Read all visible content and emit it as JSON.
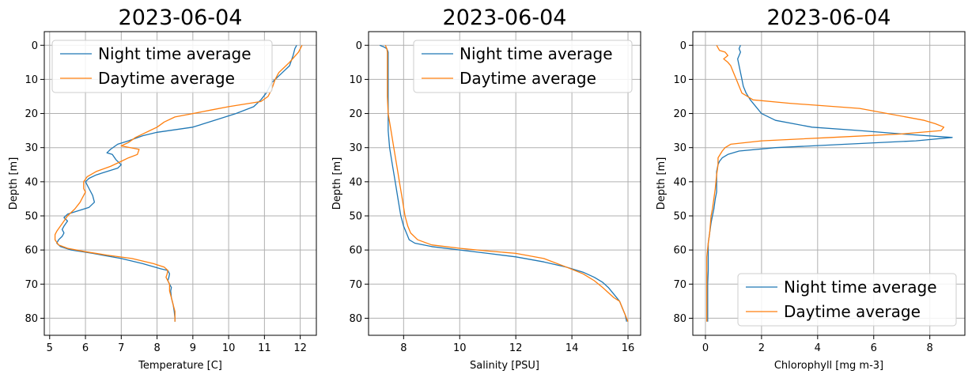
{
  "chart_data": [
    {
      "type": "line",
      "title": "2023-06-04",
      "xlabel": "Temperature [C]",
      "ylabel": "Depth [m]",
      "xlim": [
        4.85,
        12.45
      ],
      "ylim": [
        85,
        -4
      ],
      "xticks": [
        5,
        6,
        7,
        8,
        9,
        10,
        11,
        12
      ],
      "yticks": [
        0,
        10,
        20,
        30,
        40,
        50,
        60,
        70,
        80
      ],
      "grid": true,
      "legend_position": "top-left",
      "series": [
        {
          "name": "Night time average",
          "color": "#1f77b4",
          "points": [
            [
              11.9,
              0
            ],
            [
              11.85,
              1
            ],
            [
              11.8,
              3
            ],
            [
              11.7,
              6
            ],
            [
              11.5,
              8
            ],
            [
              11.2,
              11
            ],
            [
              11.05,
              14
            ],
            [
              10.9,
              16
            ],
            [
              10.7,
              18
            ],
            [
              10.2,
              20
            ],
            [
              9.6,
              22
            ],
            [
              9.0,
              24
            ],
            [
              8.0,
              25.5
            ],
            [
              7.6,
              26.5
            ],
            [
              7.2,
              28
            ],
            [
              6.9,
              29
            ],
            [
              6.7,
              30.5
            ],
            [
              6.6,
              31.5
            ],
            [
              6.75,
              32
            ],
            [
              6.85,
              33.5
            ],
            [
              7.0,
              35
            ],
            [
              6.9,
              36
            ],
            [
              6.6,
              37
            ],
            [
              6.3,
              38
            ],
            [
              6.1,
              39
            ],
            [
              6.0,
              40
            ],
            [
              6.1,
              42
            ],
            [
              6.2,
              44
            ],
            [
              6.25,
              46
            ],
            [
              6.1,
              47.5
            ],
            [
              5.8,
              48.5
            ],
            [
              5.5,
              49.5
            ],
            [
              5.4,
              50.5
            ],
            [
              5.5,
              51.5
            ],
            [
              5.4,
              53
            ],
            [
              5.35,
              54
            ],
            [
              5.4,
              55
            ],
            [
              5.35,
              56
            ],
            [
              5.25,
              57
            ],
            [
              5.2,
              58
            ],
            [
              5.3,
              59
            ],
            [
              5.6,
              60
            ],
            [
              6.2,
              61
            ],
            [
              7.0,
              62.5
            ],
            [
              7.6,
              64
            ],
            [
              8.1,
              65.5
            ],
            [
              8.3,
              66
            ],
            [
              8.35,
              67
            ],
            [
              8.33,
              68
            ],
            [
              8.3,
              69
            ],
            [
              8.35,
              70
            ],
            [
              8.4,
              71
            ],
            [
              8.38,
              72
            ],
            [
              8.4,
              74
            ],
            [
              8.45,
              76
            ],
            [
              8.48,
              78
            ],
            [
              8.5,
              80
            ],
            [
              8.5,
              81
            ]
          ]
        },
        {
          "name": "Daytime average",
          "color": "#ff7f0e",
          "points": [
            [
              12.05,
              0
            ],
            [
              11.95,
              2
            ],
            [
              11.7,
              5
            ],
            [
              11.5,
              7
            ],
            [
              11.4,
              8
            ],
            [
              11.3,
              10
            ],
            [
              11.2,
              13
            ],
            [
              11.1,
              15
            ],
            [
              10.9,
              16.5
            ],
            [
              10.0,
              18
            ],
            [
              9.5,
              19
            ],
            [
              9.0,
              20
            ],
            [
              8.5,
              21
            ],
            [
              8.2,
              22.5
            ],
            [
              8.0,
              24
            ],
            [
              7.8,
              25
            ],
            [
              7.6,
              26
            ],
            [
              7.4,
              27
            ],
            [
              7.2,
              28.5
            ],
            [
              7.0,
              29.5
            ],
            [
              7.5,
              30.5
            ],
            [
              7.45,
              32
            ],
            [
              7.2,
              33
            ],
            [
              7.0,
              34
            ],
            [
              6.7,
              35.5
            ],
            [
              6.3,
              37
            ],
            [
              6.05,
              38.5
            ],
            [
              5.95,
              40
            ],
            [
              5.95,
              42
            ],
            [
              6.0,
              43
            ],
            [
              5.95,
              44
            ],
            [
              5.9,
              45
            ],
            [
              5.85,
              46
            ],
            [
              5.7,
              48
            ],
            [
              5.5,
              50
            ],
            [
              5.4,
              51.5
            ],
            [
              5.3,
              53
            ],
            [
              5.2,
              54.5
            ],
            [
              5.15,
              55.5
            ],
            [
              5.15,
              57
            ],
            [
              5.25,
              58.5
            ],
            [
              5.5,
              59.5
            ],
            [
              6.0,
              60.5
            ],
            [
              6.6,
              61.5
            ],
            [
              7.3,
              62.5
            ],
            [
              7.9,
              64
            ],
            [
              8.2,
              65
            ],
            [
              8.3,
              66
            ],
            [
              8.28,
              67
            ],
            [
              8.25,
              68
            ],
            [
              8.3,
              69
            ],
            [
              8.35,
              70
            ],
            [
              8.35,
              72
            ],
            [
              8.4,
              74
            ],
            [
              8.45,
              76
            ],
            [
              8.5,
              78
            ],
            [
              8.5,
              81
            ]
          ]
        }
      ]
    },
    {
      "type": "line",
      "title": "2023-06-04",
      "xlabel": "Salinity [PSU]",
      "ylabel": "Depth [m]",
      "xlim": [
        6.75,
        16.45
      ],
      "ylim": [
        85,
        -4
      ],
      "xticks": [
        8,
        10,
        12,
        14,
        16
      ],
      "yticks": [
        0,
        10,
        20,
        30,
        40,
        50,
        60,
        70,
        80
      ],
      "grid": true,
      "legend_position": "top-right",
      "series": [
        {
          "name": "Night time average",
          "color": "#1f77b4",
          "points": [
            [
              7.15,
              0
            ],
            [
              7.3,
              0.5
            ],
            [
              7.4,
              1
            ],
            [
              7.45,
              2
            ],
            [
              7.45,
              5
            ],
            [
              7.45,
              10
            ],
            [
              7.45,
              15
            ],
            [
              7.45,
              20
            ],
            [
              7.45,
              25
            ],
            [
              7.5,
              30
            ],
            [
              7.6,
              35
            ],
            [
              7.7,
              40
            ],
            [
              7.8,
              45
            ],
            [
              7.9,
              50
            ],
            [
              8.0,
              53
            ],
            [
              8.1,
              55
            ],
            [
              8.2,
              57
            ],
            [
              8.4,
              58
            ],
            [
              9.0,
              59
            ],
            [
              10.0,
              60
            ],
            [
              11.0,
              61
            ],
            [
              12.0,
              62
            ],
            [
              13.0,
              63.5
            ],
            [
              13.8,
              65
            ],
            [
              14.4,
              66.5
            ],
            [
              14.8,
              68
            ],
            [
              15.1,
              69.5
            ],
            [
              15.3,
              71
            ],
            [
              15.5,
              73
            ],
            [
              15.7,
              75
            ],
            [
              15.8,
              77
            ],
            [
              15.9,
              79
            ],
            [
              15.95,
              81
            ]
          ]
        },
        {
          "name": "Daytime average",
          "color": "#ff7f0e",
          "points": [
            [
              7.35,
              0
            ],
            [
              7.4,
              1
            ],
            [
              7.42,
              2
            ],
            [
              7.42,
              5
            ],
            [
              7.42,
              10
            ],
            [
              7.42,
              15
            ],
            [
              7.45,
              20
            ],
            [
              7.55,
              25
            ],
            [
              7.65,
              30
            ],
            [
              7.75,
              35
            ],
            [
              7.85,
              40
            ],
            [
              7.95,
              45
            ],
            [
              8.05,
              50
            ],
            [
              8.15,
              53
            ],
            [
              8.25,
              55
            ],
            [
              8.5,
              57
            ],
            [
              9.0,
              58.5
            ],
            [
              10.0,
              59.5
            ],
            [
              11.0,
              60.3
            ],
            [
              12.0,
              61
            ],
            [
              13.0,
              62.5
            ],
            [
              13.8,
              65
            ],
            [
              14.4,
              67
            ],
            [
              14.8,
              69
            ],
            [
              15.1,
              71
            ],
            [
              15.3,
              72.5
            ],
            [
              15.5,
              74
            ],
            [
              15.7,
              75
            ],
            [
              15.8,
              77
            ],
            [
              15.9,
              79
            ],
            [
              16.0,
              81
            ]
          ]
        }
      ]
    },
    {
      "type": "line",
      "title": "2023-06-04",
      "xlabel": "Chlorophyll [mg m-3]",
      "ylabel": "Depth [m]",
      "xlim": [
        -0.45,
        9.25
      ],
      "ylim": [
        85,
        -4
      ],
      "xticks": [
        0,
        2,
        4,
        6,
        8
      ],
      "yticks": [
        0,
        10,
        20,
        30,
        40,
        50,
        60,
        70,
        80
      ],
      "grid": true,
      "legend_position": "bottom-right",
      "series": [
        {
          "name": "Night time average",
          "color": "#1f77b4",
          "points": [
            [
              1.25,
              0
            ],
            [
              1.2,
              1
            ],
            [
              1.25,
              2
            ],
            [
              1.2,
              3
            ],
            [
              1.15,
              4
            ],
            [
              1.2,
              6
            ],
            [
              1.25,
              8
            ],
            [
              1.3,
              10
            ],
            [
              1.35,
              12
            ],
            [
              1.45,
              14
            ],
            [
              1.6,
              16
            ],
            [
              1.8,
              18
            ],
            [
              2.0,
              20
            ],
            [
              2.5,
              22
            ],
            [
              3.8,
              24
            ],
            [
              5.5,
              25
            ],
            [
              7.0,
              26
            ],
            [
              8.8,
              27
            ],
            [
              7.5,
              28
            ],
            [
              5.0,
              29
            ],
            [
              2.5,
              30
            ],
            [
              1.2,
              31
            ],
            [
              0.8,
              32
            ],
            [
              0.6,
              33
            ],
            [
              0.5,
              34
            ],
            [
              0.45,
              35
            ],
            [
              0.4,
              37
            ],
            [
              0.4,
              40
            ],
            [
              0.4,
              43
            ],
            [
              0.35,
              45
            ],
            [
              0.3,
              48
            ],
            [
              0.25,
              50
            ],
            [
              0.2,
              52
            ],
            [
              0.15,
              55
            ],
            [
              0.1,
              58
            ],
            [
              0.1,
              62
            ],
            [
              0.1,
              66
            ],
            [
              0.08,
              70
            ],
            [
              0.08,
              75
            ],
            [
              0.08,
              80
            ],
            [
              0.08,
              81
            ]
          ]
        },
        {
          "name": "Daytime average",
          "color": "#ff7f0e",
          "points": [
            [
              0.4,
              0
            ],
            [
              0.5,
              1.5
            ],
            [
              0.7,
              2
            ],
            [
              0.8,
              3
            ],
            [
              0.65,
              4
            ],
            [
              0.8,
              5
            ],
            [
              0.9,
              6
            ],
            [
              1.0,
              8
            ],
            [
              1.1,
              10
            ],
            [
              1.2,
              12
            ],
            [
              1.3,
              14
            ],
            [
              1.5,
              15
            ],
            [
              1.7,
              16
            ],
            [
              3.0,
              17
            ],
            [
              5.5,
              18.5
            ],
            [
              7.8,
              22
            ],
            [
              8.2,
              23
            ],
            [
              8.5,
              24
            ],
            [
              8.4,
              25
            ],
            [
              7.0,
              26
            ],
            [
              4.5,
              27
            ],
            [
              2.0,
              28
            ],
            [
              0.9,
              29
            ],
            [
              0.7,
              30
            ],
            [
              0.6,
              31
            ],
            [
              0.45,
              33
            ],
            [
              0.45,
              35
            ],
            [
              0.4,
              38
            ],
            [
              0.35,
              42
            ],
            [
              0.3,
              45
            ],
            [
              0.25,
              48
            ],
            [
              0.2,
              50
            ],
            [
              0.15,
              55
            ],
            [
              0.1,
              58
            ],
            [
              0.05,
              62
            ],
            [
              0.05,
              66
            ],
            [
              0.05,
              70
            ],
            [
              0.05,
              75
            ],
            [
              0.05,
              80
            ],
            [
              0.05,
              81
            ]
          ]
        }
      ]
    }
  ]
}
